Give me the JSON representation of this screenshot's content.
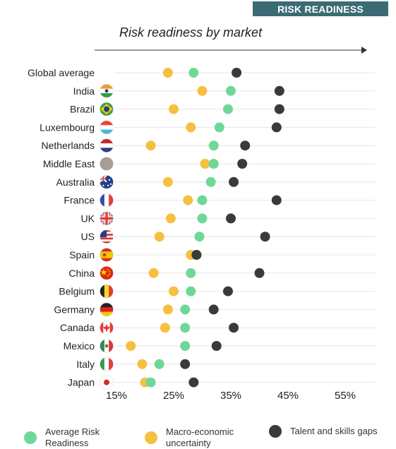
{
  "header": {
    "badge": "RISK READINESS",
    "subtitle": "Risk readiness by market"
  },
  "colors": {
    "badge_bg": "#3b6b73",
    "average_risk_readiness": "#6fd898",
    "macro_economic_uncertainty": "#f5c040",
    "talent_and_skills_gaps": "#3a3a3a",
    "gridline": "#e6e6e6",
    "axis_arrow": "#333333"
  },
  "chart_data": {
    "type": "scatter",
    "title": "Risk readiness by market",
    "categories": [
      "Global average",
      "India",
      "Brazil",
      "Luxembourg",
      "Netherlands",
      "Middle East",
      "Australia",
      "France",
      "UK",
      "US",
      "Spain",
      "China",
      "Belgium",
      "Germany",
      "Canada",
      "Mexico",
      "Italy",
      "Japan"
    ],
    "x_ticks": [
      "15%",
      "25%",
      "35%",
      "45%",
      "55%"
    ],
    "x_tick_values": [
      15,
      25,
      35,
      45,
      55
    ],
    "xlim": [
      15,
      59
    ],
    "grid": true,
    "legend_position": "bottom",
    "series": [
      {
        "name": "Average Risk Readiness",
        "color_key": "average_risk_readiness",
        "values": [
          28.5,
          35,
          34.5,
          33,
          32,
          32,
          31.5,
          30,
          30,
          29.5,
          29,
          28,
          28,
          27,
          27,
          27,
          22.5,
          21
        ]
      },
      {
        "name": "Macro-economic uncertainty",
        "color_key": "macro_economic_uncertainty",
        "values": [
          24,
          30,
          25,
          28,
          21,
          30.5,
          24,
          27.5,
          24.5,
          22.5,
          28,
          21.5,
          25,
          24,
          23.5,
          17.5,
          19.5,
          20
        ]
      },
      {
        "name": "Talent and skills gaps",
        "color_key": "talent_and_skills_gaps",
        "values": [
          36,
          43.5,
          43.5,
          43,
          37.5,
          37,
          35.5,
          43,
          35,
          41,
          29,
          40,
          34.5,
          32,
          35.5,
          32.5,
          27,
          28.5
        ]
      }
    ]
  },
  "flags": [
    {
      "market": "Global average",
      "icon": "none"
    },
    {
      "market": "India",
      "icon": "india-flag-icon",
      "stripes": [
        "#f39a2e",
        "#ffffff",
        "#2f9d44"
      ],
      "dir": "h",
      "emblem": "#1b3a8a"
    },
    {
      "market": "Brazil",
      "icon": "brazil-flag-icon",
      "base": "#3aa04a",
      "diamond": "#f4d000",
      "disc": "#1f3d8f"
    },
    {
      "market": "Luxembourg",
      "icon": "luxembourg-flag-icon",
      "stripes": [
        "#ef4135",
        "#ffffff",
        "#44b6e8"
      ],
      "dir": "h"
    },
    {
      "market": "Netherlands",
      "icon": "netherlands-flag-icon",
      "stripes": [
        "#c8282e",
        "#ffffff",
        "#2b3f88"
      ],
      "dir": "h"
    },
    {
      "market": "Middle East",
      "icon": "middle-east-disc-icon",
      "base": "#a89d92"
    },
    {
      "market": "Australia",
      "icon": "australia-flag-icon",
      "base": "#1f3f8c",
      "accent": "#e53935"
    },
    {
      "market": "France",
      "icon": "france-flag-icon",
      "stripes": [
        "#2c4fa3",
        "#ffffff",
        "#e63b3b"
      ],
      "dir": "v"
    },
    {
      "market": "UK",
      "icon": "uk-flag-icon",
      "base": "#1f3f8c",
      "cross": "#ffffff",
      "accent": "#e53935"
    },
    {
      "market": "US",
      "icon": "us-flag-icon",
      "stripes": [
        "#d83a3a",
        "#ffffff",
        "#d83a3a",
        "#ffffff",
        "#d83a3a",
        "#ffffff",
        "#d83a3a"
      ],
      "dir": "h",
      "canton": "#1f3f8c"
    },
    {
      "market": "Spain",
      "icon": "spain-flag-icon",
      "stripes": [
        "#d62b2b",
        "#f7c300",
        "#f7c300",
        "#d62b2b"
      ],
      "dir": "h",
      "emblem": "#a0522d"
    },
    {
      "market": "China",
      "icon": "china-flag-icon",
      "base": "#de2910",
      "accent": "#ffde00"
    },
    {
      "market": "Belgium",
      "icon": "belgium-flag-icon",
      "stripes": [
        "#222222",
        "#f8d628",
        "#e53935"
      ],
      "dir": "v"
    },
    {
      "market": "Germany",
      "icon": "germany-flag-icon",
      "stripes": [
        "#222222",
        "#dd2222",
        "#f8c800"
      ],
      "dir": "h"
    },
    {
      "market": "Canada",
      "icon": "canada-flag-icon",
      "stripes": [
        "#e53935",
        "#ffffff",
        "#ffffff",
        "#e53935"
      ],
      "dir": "v4",
      "accent": "#e53935"
    },
    {
      "market": "Mexico",
      "icon": "mexico-flag-icon",
      "stripes": [
        "#2e8b4a",
        "#ffffff",
        "#d43a3a"
      ],
      "dir": "v",
      "emblem": "#8b6b3a"
    },
    {
      "market": "Italy",
      "icon": "italy-flag-icon",
      "stripes": [
        "#2e9e4a",
        "#ffffff",
        "#e53935"
      ],
      "dir": "v"
    },
    {
      "market": "Japan",
      "icon": "japan-flag-icon",
      "base": "#ffffff",
      "disc": "#d42a2a"
    }
  ]
}
